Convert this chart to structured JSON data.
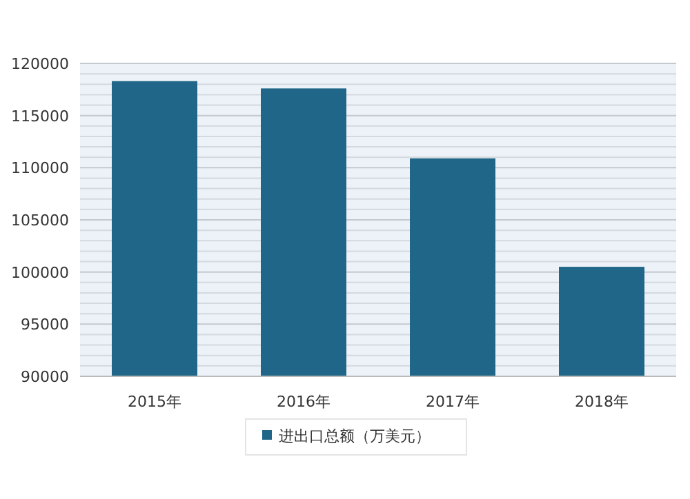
{
  "chart_data": {
    "type": "bar",
    "categories": [
      "2015年",
      "2016年",
      "2017年",
      "2018年"
    ],
    "series": [
      {
        "name": "进出口总额（万美元）",
        "color": "#1f6688",
        "values": [
          118300,
          117600,
          110900,
          100500
        ]
      }
    ],
    "ylim": [
      90000,
      120000
    ],
    "yticks": [
      90000,
      {
        "value": 91000,
        "label": null
      },
      {
        "value": 92000,
        "label": null
      },
      {
        "value": 93000,
        "label": null
      },
      {
        "value": 94000,
        "label": null
      },
      95000,
      {
        "value": 96000,
        "label": null
      },
      {
        "value": 97000,
        "label": null
      },
      {
        "value": 98000,
        "label": null
      },
      {
        "value": 99000,
        "label": null
      },
      100000,
      {
        "value": 101000,
        "label": null
      },
      {
        "value": 102000,
        "label": null
      },
      {
        "value": 103000,
        "label": null
      },
      {
        "value": 104000,
        "label": null
      },
      105000,
      {
        "value": 106000,
        "label": null
      },
      {
        "value": 107000,
        "label": null
      },
      {
        "value": 108000,
        "label": null
      },
      {
        "value": 109000,
        "label": null
      },
      110000,
      {
        "value": 111000,
        "label": null
      },
      {
        "value": 112000,
        "label": null
      },
      {
        "value": 113000,
        "label": null
      },
      {
        "value": 114000,
        "label": null
      },
      115000,
      {
        "value": 116000,
        "label": null
      },
      {
        "value": 117000,
        "label": null
      },
      {
        "value": 118000,
        "label": null
      },
      {
        "value": 119000,
        "label": null
      },
      120000
    ],
    "grid": "y",
    "legend": "bottom"
  }
}
